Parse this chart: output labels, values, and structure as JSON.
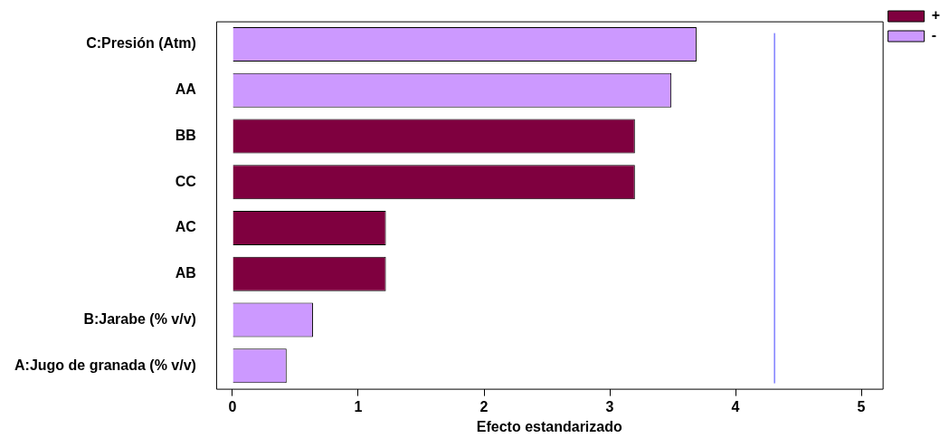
{
  "chart_data": {
    "type": "bar",
    "orientation": "horizontal",
    "xlabel": "Efecto estandarizado",
    "categories": [
      "C:Presión (Atm)",
      "AA",
      "BB",
      "CC",
      "AC",
      "AB",
      "B:Jarabe (% v/v)",
      "A:Jugo de granada (% v/v)"
    ],
    "series": [
      {
        "name": "+",
        "color": "#7f003f",
        "values": [
          null,
          null,
          3.2,
          3.2,
          1.22,
          1.22,
          null,
          null
        ]
      },
      {
        "name": "-",
        "color": "#cc99ff",
        "values": [
          3.69,
          3.49,
          null,
          null,
          null,
          null,
          0.64,
          0.43
        ]
      }
    ],
    "xlim": [
      -0.13,
      5.17
    ],
    "xticks": [
      0,
      1,
      2,
      3,
      4,
      5
    ],
    "ref_lines": [
      {
        "axis": "x",
        "value": 4.31,
        "color": "#4040ff"
      }
    ],
    "grid": false,
    "legend": "top right"
  }
}
